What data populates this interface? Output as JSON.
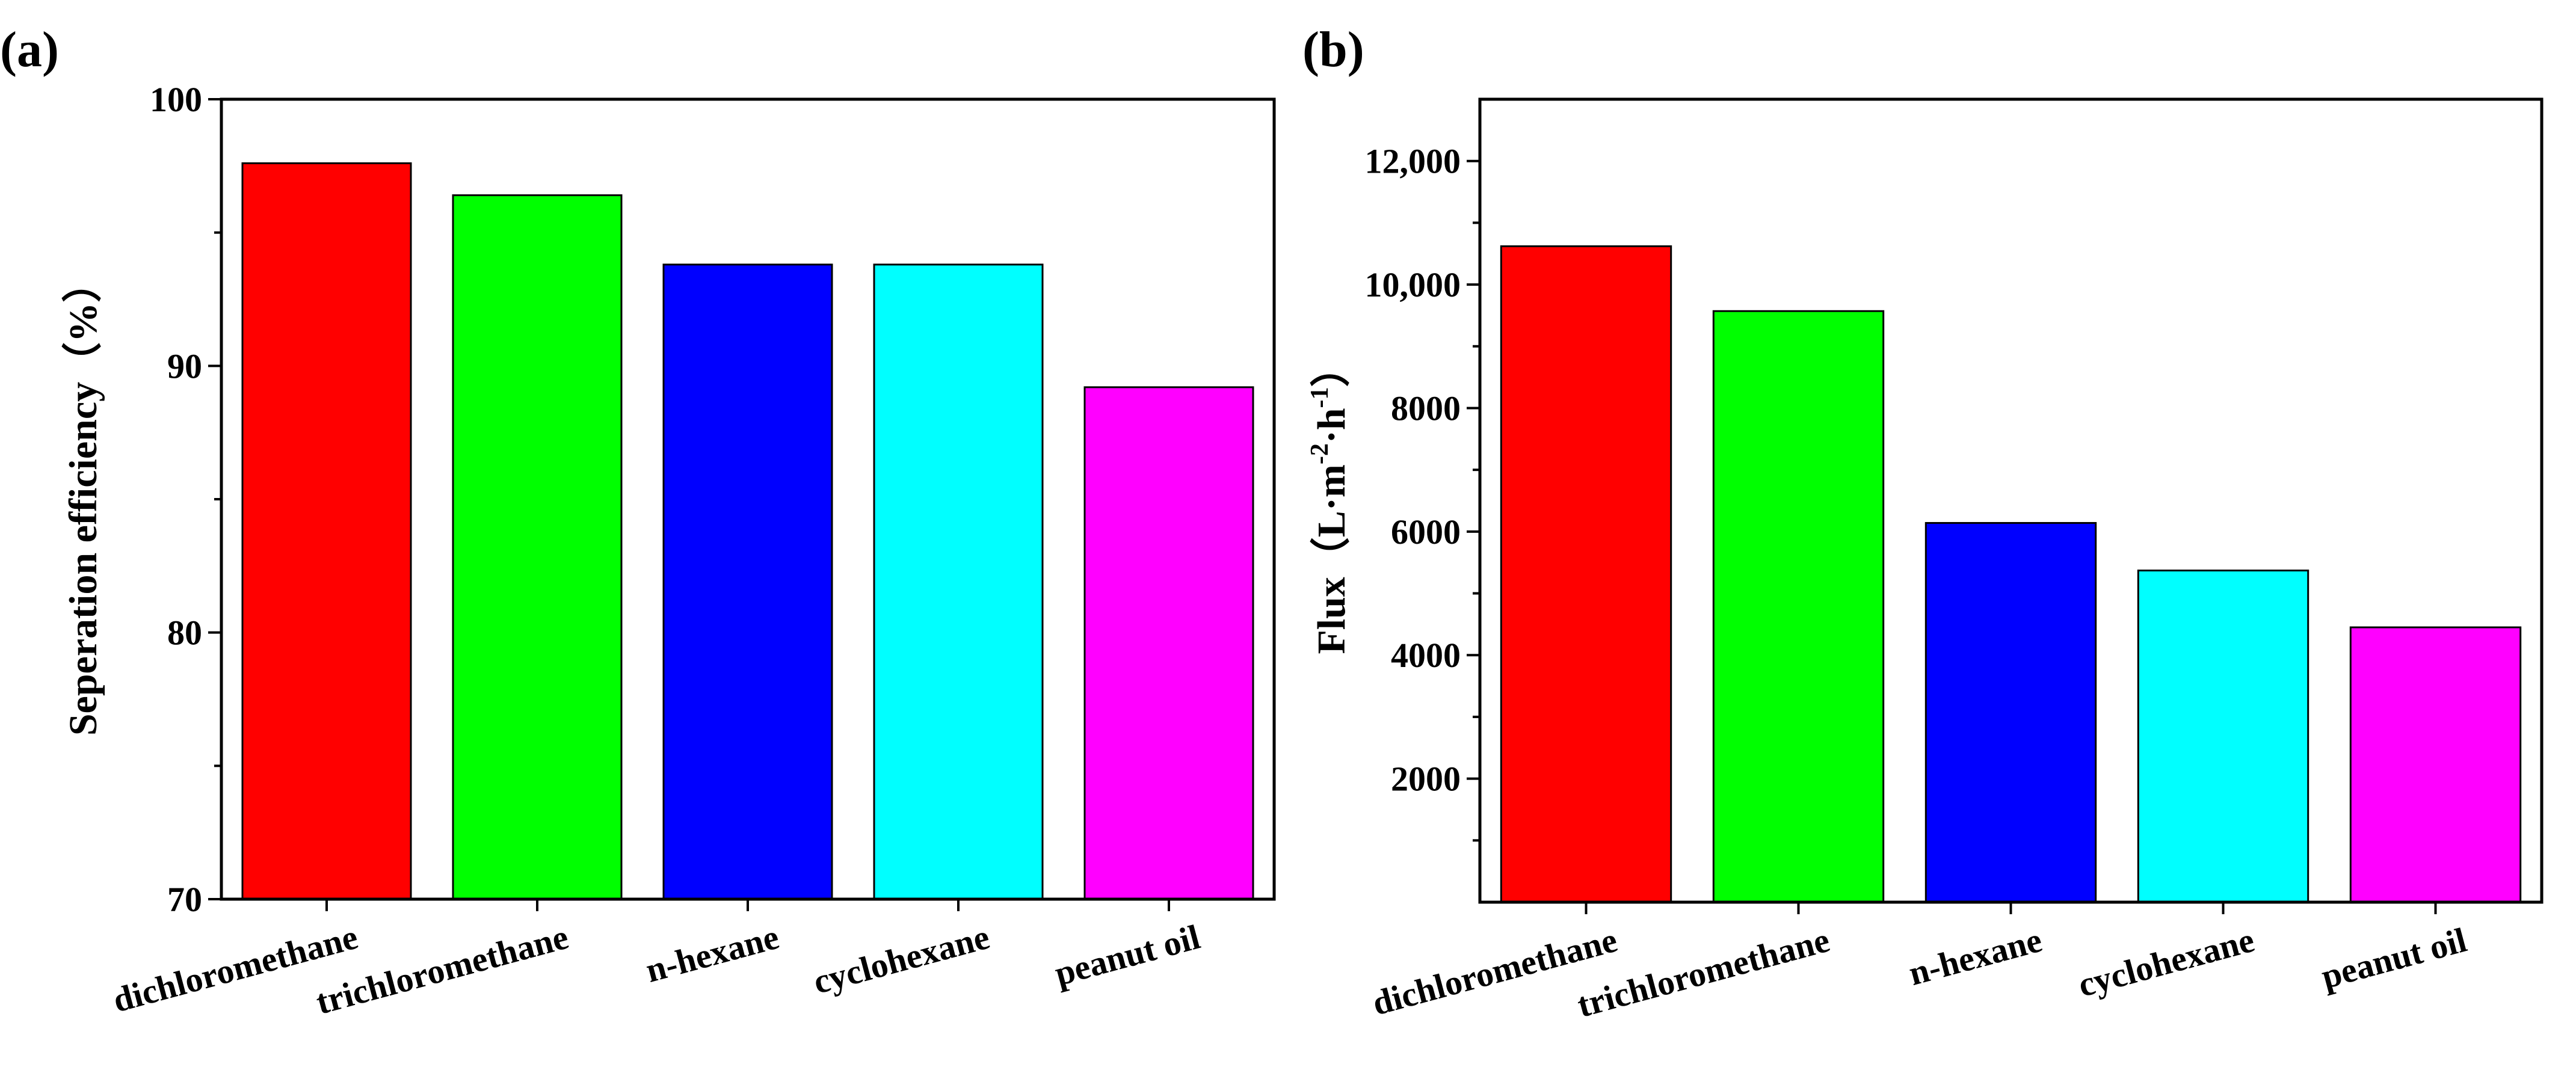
{
  "chart_data": [
    {
      "panel": "(a)",
      "type": "bar",
      "categories": [
        "dichloromethane",
        "trichloromethane",
        "n-hexane",
        "cyclohexane",
        "peanut oil"
      ],
      "values": [
        97.6,
        96.4,
        93.8,
        93.8,
        89.2
      ],
      "colors": [
        "#ff0000",
        "#00ff00",
        "#0000ff",
        "#00ffff",
        "#ff00ff"
      ],
      "ylabel": "Seperation efficiency（%）",
      "xlabel": "",
      "ylim": [
        70,
        100
      ],
      "yticks": [
        70,
        80,
        90,
        100
      ],
      "ytick_labels": [
        "70",
        "80",
        "90",
        "100"
      ],
      "grid": false
    },
    {
      "panel": "(b)",
      "type": "bar",
      "categories": [
        "dichloromethane",
        "trichloromethane",
        "n-hexane",
        "cyclohexane",
        "peanut oil"
      ],
      "values": [
        10620,
        9570,
        6140,
        5370,
        4450
      ],
      "colors": [
        "#ff0000",
        "#00ff00",
        "#0000ff",
        "#00ffff",
        "#ff00ff"
      ],
      "ylabel": {
        "base": "Flux（L·m",
        "exp1": "-2",
        "mid": "·h",
        "exp2": "-1",
        "end": "）"
      },
      "xlabel": "",
      "ylim": [
        0,
        13000
      ],
      "yticks": [
        2000,
        4000,
        6000,
        8000,
        10000,
        12000
      ],
      "ytick_labels": [
        "2000",
        "4000",
        "6000",
        "8000",
        "10,000",
        "12,000"
      ],
      "grid": false
    }
  ]
}
